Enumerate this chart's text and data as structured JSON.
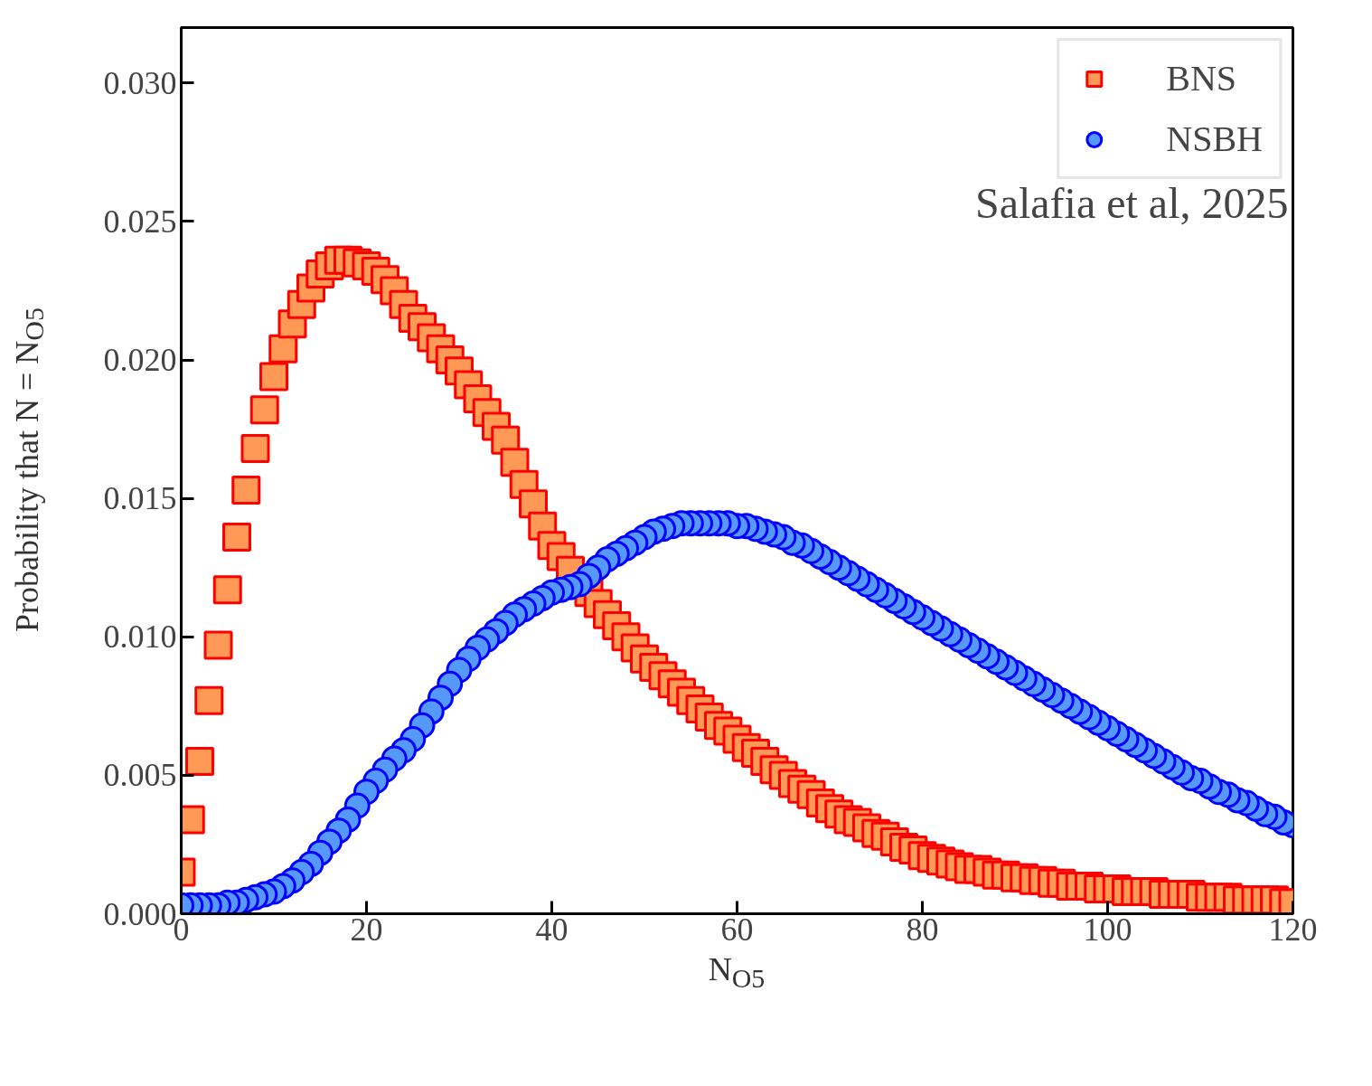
{
  "chart_data": {
    "type": "scatter",
    "xlabel": "N$_{O5}$",
    "ylabel": "Probability that N = N$_{O5}$",
    "annotations": [
      "Salafia et al, 2025"
    ],
    "x": [
      0,
      1,
      2,
      3,
      4,
      5,
      6,
      7,
      8,
      9,
      10,
      11,
      12,
      13,
      14,
      15,
      16,
      17,
      18,
      19,
      20,
      21,
      22,
      23,
      24,
      25,
      26,
      27,
      28,
      29,
      30,
      31,
      32,
      33,
      34,
      35,
      36,
      37,
      38,
      39,
      40,
      41,
      42,
      43,
      44,
      45,
      46,
      47,
      48,
      49,
      50,
      51,
      52,
      53,
      54,
      55,
      56,
      57,
      58,
      59,
      60,
      61,
      62,
      63,
      64,
      65,
      66,
      67,
      68,
      69,
      70,
      71,
      72,
      73,
      74,
      75,
      76,
      77,
      78,
      79,
      80,
      81,
      82,
      83,
      84,
      85,
      86,
      87,
      88,
      89,
      90,
      91,
      92,
      93,
      94,
      95,
      96,
      97,
      98,
      99,
      100,
      101,
      102,
      103,
      104,
      105,
      106,
      107,
      108,
      109,
      110,
      111,
      112,
      113,
      114,
      115,
      116,
      117,
      118,
      119,
      120
    ],
    "series": [
      {
        "name": "BNS",
        "color": "#ff9955",
        "marker": "square",
        "values": [
          0.0015,
          0.0034,
          0.0055,
          0.0077,
          0.0097,
          0.0117,
          0.0136,
          0.0153,
          0.0168,
          0.0182,
          0.0194,
          0.0204,
          0.0213,
          0.022,
          0.0226,
          0.0231,
          0.0234,
          0.0236,
          0.0236,
          0.0235,
          0.0234,
          0.0232,
          0.0229,
          0.0225,
          0.022,
          0.0215,
          0.0212,
          0.0208,
          0.0204,
          0.02,
          0.0196,
          0.0191,
          0.0186,
          0.0181,
          0.0176,
          0.0171,
          0.0163,
          0.0155,
          0.0148,
          0.014,
          0.0133,
          0.0129,
          0.0124,
          null,
          0.0116,
          0.0112,
          0.0108,
          0.0104,
          0.01,
          0.0096,
          0.0092,
          0.0089,
          0.0086,
          0.0083,
          0.008,
          0.0077,
          0.0074,
          0.0071,
          0.0068,
          0.0066,
          0.0063,
          0.006,
          0.0058,
          0.0055,
          0.0052,
          0.005,
          0.0047,
          0.0045,
          0.0043,
          0.004,
          0.0038,
          0.0036,
          0.0034,
          0.0033,
          0.0031,
          0.0029,
          0.0028,
          0.0026,
          0.0024,
          0.0023,
          0.0021,
          0.002,
          0.0019,
          0.0018,
          0.0017,
          0.0016,
          0.0016,
          0.0015,
          0.0014,
          0.0014,
          0.0013,
          0.0013,
          0.0012,
          0.0012,
          0.0011,
          0.0011,
          0.001,
          0.001,
          0.001,
          0.0009,
          0.0009,
          0.0009,
          0.0008,
          0.0008,
          0.0008,
          0.0008,
          0.0007,
          0.0007,
          0.0007,
          0.0007,
          0.0006,
          0.0006,
          0.0006,
          0.0006,
          0.0005,
          0.0005,
          0.0005,
          0.0005,
          0.0005,
          0.0004,
          0.0004
        ]
      },
      {
        "name": "NSBH",
        "color": "#5599ff",
        "marker": "circle",
        "values": [
          0.0003,
          0.0003,
          0.0003,
          0.0003,
          0.0003,
          0.0004,
          0.0004,
          0.0005,
          0.0006,
          0.0007,
          0.0008,
          0.001,
          0.0012,
          0.0015,
          0.0018,
          0.0022,
          0.0026,
          0.003,
          0.0034,
          0.0039,
          0.0044,
          0.0048,
          0.0052,
          0.0056,
          0.0059,
          0.0063,
          0.0068,
          0.0073,
          0.0078,
          0.0083,
          0.0088,
          0.0092,
          0.0096,
          0.0099,
          0.0102,
          0.0105,
          0.0108,
          0.011,
          0.0112,
          0.0114,
          0.0116,
          0.0117,
          0.0118,
          0.0119,
          0.0122,
          0.0125,
          0.0128,
          0.013,
          0.0132,
          0.0134,
          0.0136,
          0.0138,
          0.0139,
          0.014,
          0.0141,
          0.0141,
          0.0141,
          0.0141,
          0.0141,
          0.0141,
          0.014,
          0.014,
          0.0139,
          0.0138,
          0.0137,
          0.0136,
          0.0134,
          0.0133,
          0.0131,
          0.0129,
          0.0127,
          0.0125,
          0.0123,
          0.0121,
          0.0119,
          0.0117,
          0.0115,
          0.0113,
          0.0111,
          0.0109,
          0.0107,
          0.0105,
          0.0103,
          0.0101,
          0.0099,
          0.0097,
          0.0095,
          0.0093,
          0.0091,
          0.0089,
          0.0087,
          0.0085,
          0.0083,
          0.0081,
          0.0079,
          0.0077,
          0.0075,
          0.0073,
          0.0071,
          0.0069,
          0.0067,
          0.0065,
          0.0063,
          0.0061,
          0.0059,
          0.0057,
          0.0055,
          0.0053,
          0.0051,
          0.0049,
          0.0048,
          0.0046,
          0.0044,
          0.0043,
          0.0041,
          0.004,
          0.0038,
          0.0036,
          0.0035,
          0.0033,
          0.0032
        ]
      }
    ],
    "xlim": [
      0,
      120
    ],
    "xticks": [
      0,
      20,
      40,
      60,
      80,
      100,
      120
    ],
    "ylim": [
      0,
      0.032
    ],
    "yticks": [
      {
        "value": 0,
        "label": "0.000"
      },
      0.005,
      {
        "value": 0.01,
        "label": "0.010"
      },
      0.015,
      {
        "value": 0.02,
        "label": "0.020"
      },
      0.025,
      {
        "value": 0.03,
        "label": "0.030"
      }
    ],
    "legend": "top right",
    "grid": false
  }
}
